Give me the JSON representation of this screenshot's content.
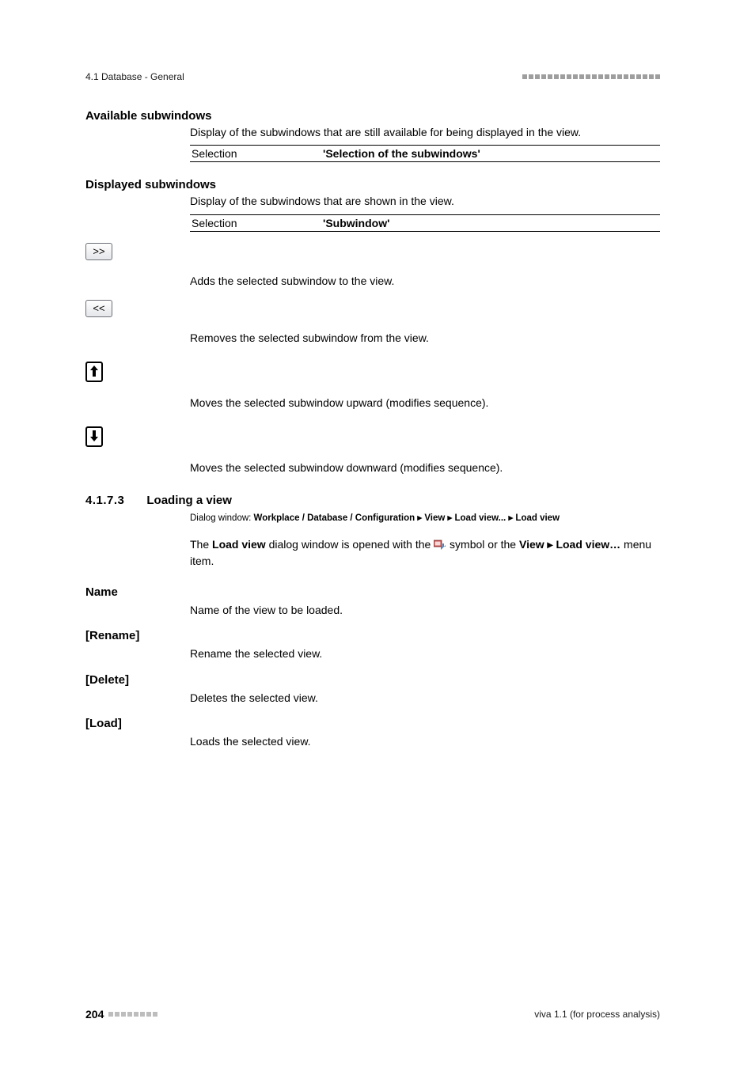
{
  "header": {
    "section_path": "4.1 Database - General",
    "decorative_square_count": 22,
    "decorative_color": "#9e9e9e"
  },
  "available_subwindows": {
    "heading": "Available subwindows",
    "description": "Display of the subwindows that are still available for being displayed in the view.",
    "def_left": "Selection",
    "def_right": "'Selection of the subwindows'"
  },
  "displayed_subwindows": {
    "heading": "Displayed subwindows",
    "description": "Display of the subwindows that are shown in the view.",
    "def_left": "Selection",
    "def_right": "'Subwindow'"
  },
  "buttons": {
    "add": {
      "label": ">>",
      "description": "Adds the selected subwindow to the view."
    },
    "remove": {
      "label": "<<",
      "description": "Removes the selected subwindow from the view."
    },
    "up": {
      "description": "Moves the selected subwindow upward (modifies sequence)."
    },
    "down": {
      "description": "Moves the selected subwindow downward (modifies sequence)."
    }
  },
  "loading_a_view": {
    "number": "4.1.7.3",
    "title": "Loading a view",
    "dialog_prefix": "Dialog window: ",
    "dialog_path": "Workplace / Database / Configuration ▸ View ▸ Load view... ▸ Load view",
    "paragraph_before": "The ",
    "paragraph_bold1": "Load view",
    "paragraph_mid1": " dialog window is opened with the ",
    "paragraph_mid2": " symbol or the ",
    "paragraph_bold2": "View ▸ Load view…",
    "paragraph_after": " menu item.",
    "icon_colors": {
      "screen": "#c0504d",
      "arrow": "#4f81bd"
    }
  },
  "fields": {
    "name": {
      "label": "Name",
      "text": "Name of the view to be loaded."
    },
    "rename": {
      "label": "[Rename]",
      "text": "Rename the selected view."
    },
    "delete": {
      "label": "[Delete]",
      "text": "Deletes the selected view."
    },
    "load": {
      "label": "[Load]",
      "text": "Loads the selected view."
    }
  },
  "footer": {
    "page": "204",
    "decorative_square_count": 8,
    "decorative_color": "#bdbdbd",
    "right_text": "viva 1.1 (for process analysis)"
  }
}
